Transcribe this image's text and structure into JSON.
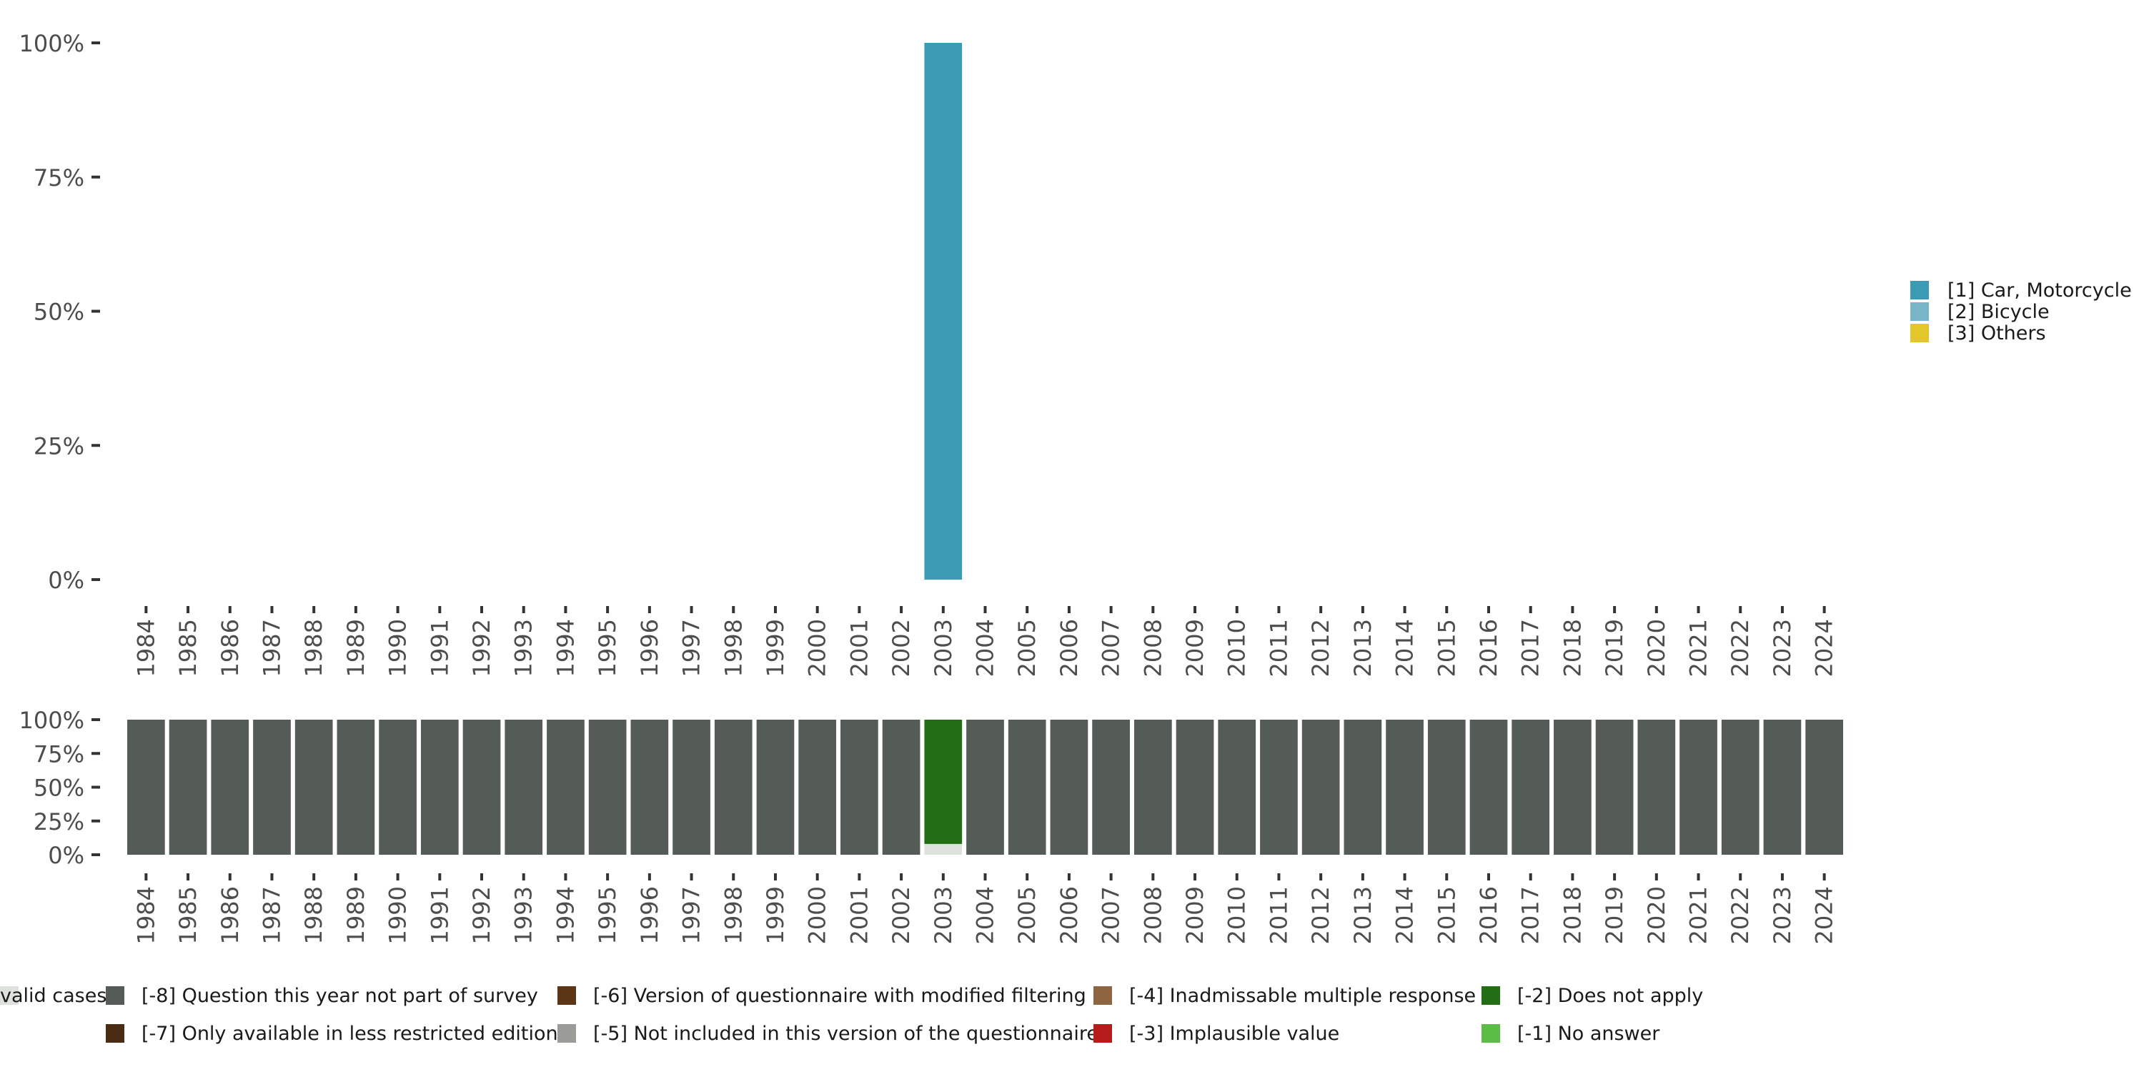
{
  "chart_data": [
    {
      "type": "bar",
      "name": "main-distribution",
      "stacked": true,
      "ylim": [
        0,
        1
      ],
      "y_ticks": [
        0,
        0.25,
        0.5,
        0.75,
        1
      ],
      "y_tick_labels": [
        "0%",
        "25%",
        "50%",
        "75%",
        "100%"
      ],
      "categories": [
        "1984",
        "1985",
        "1986",
        "1987",
        "1988",
        "1989",
        "1990",
        "1991",
        "1992",
        "1993",
        "1994",
        "1995",
        "1996",
        "1997",
        "1998",
        "1999",
        "2000",
        "2001",
        "2002",
        "2003",
        "2004",
        "2005",
        "2006",
        "2007",
        "2008",
        "2009",
        "2010",
        "2011",
        "2012",
        "2013",
        "2014",
        "2015",
        "2016",
        "2017",
        "2018",
        "2019",
        "2020",
        "2021",
        "2022",
        "2023",
        "2024"
      ],
      "series": [
        {
          "name": "[1] Car, Motorcycle",
          "color": "#3c9ab5",
          "values": {
            "2003": 1.0
          }
        },
        {
          "name": "[2] Bicycle",
          "color": "#79b5c8",
          "values": {}
        },
        {
          "name": "[3] Others",
          "color": "#e3c62a",
          "values": {}
        }
      ],
      "legend": "right"
    },
    {
      "type": "bar",
      "name": "missing-distribution",
      "stacked": true,
      "ylim": [
        0,
        1
      ],
      "y_ticks": [
        0,
        0.25,
        0.5,
        0.75,
        1
      ],
      "y_tick_labels": [
        "0%",
        "25%",
        "50%",
        "75%",
        "100%"
      ],
      "categories": [
        "1984",
        "1985",
        "1986",
        "1987",
        "1988",
        "1989",
        "1990",
        "1991",
        "1992",
        "1993",
        "1994",
        "1995",
        "1996",
        "1997",
        "1998",
        "1999",
        "2000",
        "2001",
        "2002",
        "2003",
        "2004",
        "2005",
        "2006",
        "2007",
        "2008",
        "2009",
        "2010",
        "2011",
        "2012",
        "2013",
        "2014",
        "2015",
        "2016",
        "2017",
        "2018",
        "2019",
        "2020",
        "2021",
        "2022",
        "2023",
        "2024"
      ],
      "stack_order": [
        "valid cases",
        "[-1] No answer",
        "[-2] Does not apply",
        "[-3] Implausible value",
        "[-4] Inadmissable multiple response",
        "[-5] Not included in this version of the questionnaire",
        "[-6] Version of questionnaire with modified filtering",
        "[-7] Only available in less restricted edition",
        "[-8] Question this year not part of survey"
      ],
      "values_by_year": {
        "default": {
          "[-8] Question this year not part of survey": 1.0
        },
        "2003": {
          "valid cases": 0.08,
          "[-2] Does not apply": 0.92
        }
      },
      "legend": "bottom",
      "legend_items": [
        {
          "name": "[-8] Question this year not part of survey",
          "color": "#555b56"
        },
        {
          "name": "[-7] Only available in less restricted edition",
          "color": "#4a2c14"
        },
        {
          "name": "[-6] Version of questionnaire with modified filtering",
          "color": "#5a3516"
        },
        {
          "name": "[-5] Not included in this version of the questionnaire",
          "color": "#9b9b97"
        },
        {
          "name": "[-4] Inadmissable multiple response",
          "color": "#8d6641"
        },
        {
          "name": "[-3] Implausible value",
          "color": "#b51c1c"
        },
        {
          "name": "[-2] Does not apply",
          "color": "#236e14"
        },
        {
          "name": "[-1] No answer",
          "color": "#5bbd45"
        },
        {
          "name": "valid cases",
          "color": "#dde2dd"
        }
      ]
    }
  ]
}
